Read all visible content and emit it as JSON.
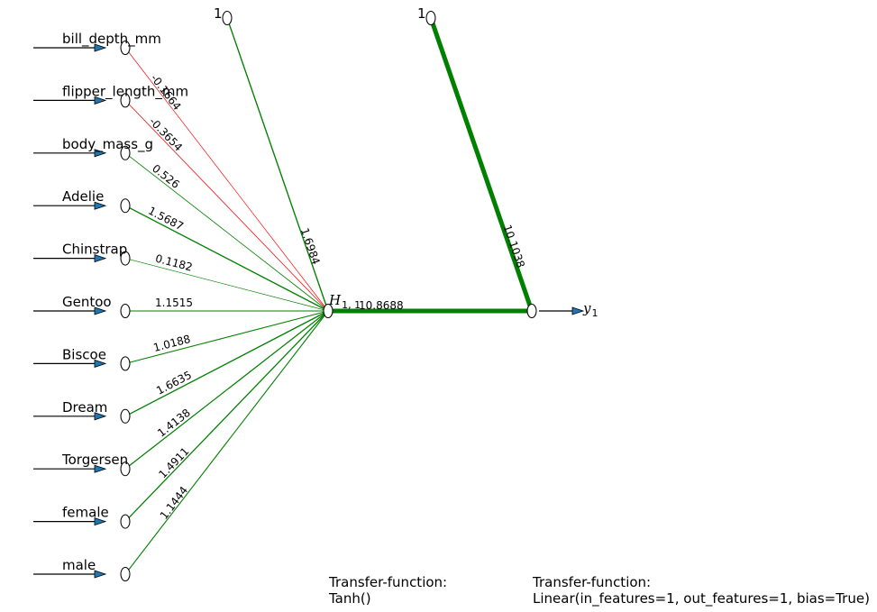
{
  "colors": {
    "positive": "#008000",
    "negative": "#ff0000",
    "arrow_fill": "#1f77b4",
    "node_fill": "#ffffff",
    "stroke": "#000000"
  },
  "inputs": [
    {
      "name": "bill_depth_mm",
      "weight": "-0.1664",
      "sign": "negative"
    },
    {
      "name": "flipper_length_mm",
      "weight": "-0.3654",
      "sign": "negative"
    },
    {
      "name": "body_mass_g",
      "weight": "0.526",
      "sign": "positive"
    },
    {
      "name": "Adelie",
      "weight": "1.5687",
      "sign": "positive"
    },
    {
      "name": "Chinstrap",
      "weight": "0.1182",
      "sign": "positive"
    },
    {
      "name": "Gentoo",
      "weight": "1.1515",
      "sign": "positive"
    },
    {
      "name": "Biscoe",
      "weight": "1.0188",
      "sign": "positive"
    },
    {
      "name": "Dream",
      "weight": "1.6635",
      "sign": "positive"
    },
    {
      "name": "Torgersen",
      "weight": "1.4138",
      "sign": "positive"
    },
    {
      "name": "female",
      "weight": "1.4911",
      "sign": "positive"
    },
    {
      "name": "male",
      "weight": "1.1444",
      "sign": "positive"
    }
  ],
  "hidden_node": {
    "label": "H",
    "subscript": "1, 1",
    "bias_label": "1",
    "bias_weight": "1.6984",
    "output_weight": "10.8688",
    "transfer_title": "Transfer-function:",
    "transfer_function": "Tanh()"
  },
  "output_node": {
    "label": "y",
    "subscript": "1",
    "bias_label": "1",
    "bias_weight": "10.1038",
    "transfer_title": "Transfer-function:",
    "transfer_function": "Linear(in_features=1, out_features=1, bias=True)"
  }
}
